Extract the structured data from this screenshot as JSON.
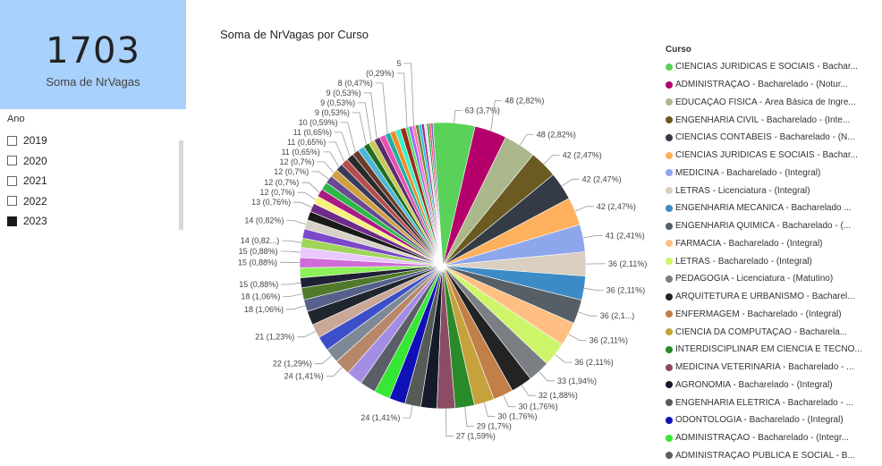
{
  "kpi": {
    "value": "1703",
    "label": "Soma de NrVagas"
  },
  "slicer": {
    "title": "Ano",
    "items": [
      {
        "label": "2019",
        "checked": false
      },
      {
        "label": "2020",
        "checked": false
      },
      {
        "label": "2021",
        "checked": false
      },
      {
        "label": "2022",
        "checked": false
      },
      {
        "label": "2023",
        "checked": true
      }
    ]
  },
  "legend": {
    "title": "Curso",
    "items": [
      {
        "label": "CIÊNCIAS JURÍDICAS E SOCIAIS - Bachar...",
        "color": "#5ad25a"
      },
      {
        "label": "ADMINISTRAÇÃO - Bacharelado - (Notur...",
        "color": "#b5006b"
      },
      {
        "label": "EDUCAÇÃO FÍSICA - Área Básica de Ingre...",
        "color": "#aab88c"
      },
      {
        "label": "ENGENHARIA CIVIL - Bacharelado - (Inte...",
        "color": "#6b5a22"
      },
      {
        "label": "CIÊNCIAS CONTÁBEIS - Bacharelado - (N...",
        "color": "#343b47"
      },
      {
        "label": "CIÊNCIAS JURÍDICAS E SOCIAIS - Bachar...",
        "color": "#ffb05c"
      },
      {
        "label": "MEDICINA - Bacharelado - (Integral)",
        "color": "#8ea7ec"
      },
      {
        "label": "LETRAS - Licenciatura - (Integral)",
        "color": "#dacfc0"
      },
      {
        "label": "ENGENHARIA MECÂNICA - Bacharelado ...",
        "color": "#3d8bc6"
      },
      {
        "label": "ENGENHARIA QUÍMICA - Bacharelado - (...",
        "color": "#575f66"
      },
      {
        "label": "FARMÁCIA - Bacharelado - (Integral)",
        "color": "#ffbe82"
      },
      {
        "label": "LETRAS - Bacharelado - (Integral)",
        "color": "#cdf56a"
      },
      {
        "label": "PEDAGOGIA - Licenciatura - (Matutino)",
        "color": "#7b7f84"
      },
      {
        "label": "ARQUITETURA E URBANISMO - Bacharel...",
        "color": "#232323"
      },
      {
        "label": "ENFERMAGEM - Bacharelado - (Integral)",
        "color": "#c27f48"
      },
      {
        "label": "CIÊNCIA DA COMPUTAÇÃO - Bacharela...",
        "color": "#c6a23c"
      },
      {
        "label": "INTERDISCIPLINAR EM CIÊNCIA E TECNO...",
        "color": "#2a8a2a"
      },
      {
        "label": "MEDICINA VETERINÁRIA - Bacharelado - ...",
        "color": "#8b4d63"
      },
      {
        "label": "AGRONOMIA - Bacharelado - (Integral)",
        "color": "#141a2a"
      },
      {
        "label": "ENGENHARIA ELÉTRICA - Bacharelado - ...",
        "color": "#555c57"
      },
      {
        "label": "ODONTOLOGIA - Bacharelado - (Integral)",
        "color": "#1010b8"
      },
      {
        "label": "ADMINISTRAÇÃO - Bacharelado - (Integr...",
        "color": "#35e834"
      },
      {
        "label": "ADMINISTRAÇÃO PÚBLICA E SOCIAL - B...",
        "color": "#5a5e66"
      }
    ]
  },
  "chart_data": {
    "type": "pie",
    "title": "Soma de NrVagas por Curso",
    "total": 1703,
    "slices": [
      {
        "value": 63,
        "label": "63 (3,7%)",
        "color": "#5ad25a"
      },
      {
        "value": 48,
        "label": "48 (2,82%)",
        "color": "#b5006b"
      },
      {
        "value": 48,
        "label": "48 (2,82%)",
        "color": "#aab88c"
      },
      {
        "value": 42,
        "label": "42 (2,47%)",
        "color": "#6b5a22"
      },
      {
        "value": 42,
        "label": "42 (2,47%)",
        "color": "#343b47"
      },
      {
        "value": 42,
        "label": "42 (2,47%)",
        "color": "#ffb05c"
      },
      {
        "value": 41,
        "label": "41 (2,41%)",
        "color": "#8ea7ec"
      },
      {
        "value": 36,
        "label": "36 (2,11%)",
        "color": "#dacfc0"
      },
      {
        "value": 36,
        "label": "36 (2,11%)",
        "color": "#3d8bc6"
      },
      {
        "value": 36,
        "label": "36 (2,1...)",
        "color": "#575f66"
      },
      {
        "value": 36,
        "label": "36 (2,11%)",
        "color": "#ffbe82"
      },
      {
        "value": 36,
        "label": "36 (2,11%)",
        "color": "#cdf56a"
      },
      {
        "value": 33,
        "label": "33 (1,94%)",
        "color": "#7b7f84"
      },
      {
        "value": 32,
        "label": "32 (1,88%)",
        "color": "#232323"
      },
      {
        "value": 30,
        "label": "30 (1,76%)",
        "color": "#c27f48"
      },
      {
        "value": 30,
        "label": "30 (1,76%)",
        "color": "#c6a23c"
      },
      {
        "value": 29,
        "label": "29 (1,7%)",
        "color": "#2a8a2a"
      },
      {
        "value": 27,
        "label": "27 (1,59%)",
        "color": "#8b4d63"
      },
      {
        "value": 24,
        "label": "",
        "color": "#141a2a"
      },
      {
        "value": 24,
        "label": "24 (1,41%)",
        "color": "#555c57"
      },
      {
        "value": 24,
        "label": "",
        "color": "#1010b8"
      },
      {
        "value": 24,
        "label": "",
        "color": "#35e834"
      },
      {
        "value": 24,
        "label": "",
        "color": "#5a5e66"
      },
      {
        "value": 24,
        "label": "",
        "color": "#a58ce4"
      },
      {
        "value": 24,
        "label": "24 (1,41%)",
        "color": "#b8876a"
      },
      {
        "value": 22,
        "label": "22 (1,29%)",
        "color": "#7d8a96"
      },
      {
        "value": 22,
        "label": "",
        "color": "#3c4fc9"
      },
      {
        "value": 21,
        "label": "21 (1,23%)",
        "color": "#c9a898"
      },
      {
        "value": 21,
        "label": "",
        "color": "#20262e"
      },
      {
        "value": 18,
        "label": "18 (1,06%)",
        "color": "#56608a"
      },
      {
        "value": 18,
        "label": "18 (1,06%)",
        "color": "#4f7a2a"
      },
      {
        "value": 15,
        "label": "15 (0,88%)",
        "color": "#1f1f35"
      },
      {
        "value": 15,
        "label": "",
        "color": "#8cf05a"
      },
      {
        "value": 15,
        "label": "15 (0,88%)",
        "color": "#cf6bd6"
      },
      {
        "value": 15,
        "label": "15 (0,88%)",
        "color": "#e8c8ff"
      },
      {
        "value": 14,
        "label": "14 (0,82...)",
        "color": "#9fd45a"
      },
      {
        "value": 14,
        "label": "",
        "color": "#7a4ac8"
      },
      {
        "value": 14,
        "label": "14 (0,82%)",
        "color": "#d7d2c8"
      },
      {
        "value": 13,
        "label": "",
        "color": "#1a1a1a"
      },
      {
        "value": 13,
        "label": "13 (0,76%)",
        "color": "#6e2c88"
      },
      {
        "value": 12,
        "label": "12 (0,7%)",
        "color": "#f7f07a"
      },
      {
        "value": 12,
        "label": "12 (0,7%)",
        "color": "#aa1a80"
      },
      {
        "value": 12,
        "label": "",
        "color": "#2db84a"
      },
      {
        "value": 12,
        "label": "12 (0,7%)",
        "color": "#6a4a90"
      },
      {
        "value": 12,
        "label": "12 (0,7%)",
        "color": "#d0a040"
      },
      {
        "value": 11,
        "label": "11 (0,65%)",
        "color": "#3a3a5a"
      },
      {
        "value": 11,
        "label": "11 (0,65%)",
        "color": "#b54d4d"
      },
      {
        "value": 11,
        "label": "11 (0,65%)",
        "color": "#2a2a2a"
      },
      {
        "value": 10,
        "label": "10 (0,59%)",
        "color": "#6b3a2a"
      },
      {
        "value": 10,
        "label": "",
        "color": "#4ab8d8"
      },
      {
        "value": 9,
        "label": "9 (0,53%)",
        "color": "#1e6e1e"
      },
      {
        "value": 9,
        "label": "9 (0,53%)",
        "color": "#c8c850"
      },
      {
        "value": 9,
        "label": "9 (0,53%)",
        "color": "#5a2a6e"
      },
      {
        "value": 9,
        "label": "",
        "color": "#e84fb0"
      },
      {
        "value": 8,
        "label": "8 (0,47%)",
        "color": "#20b0a0"
      },
      {
        "value": 8,
        "label": "",
        "color": "#f08a2a"
      },
      {
        "value": 8,
        "label": "",
        "color": "#3af0c8"
      },
      {
        "value": 8,
        "label": "",
        "color": "#9a2a1a"
      },
      {
        "value": 5,
        "label": "(0,29%)",
        "color": "#50e070"
      },
      {
        "value": 5,
        "label": "",
        "color": "#a060ff"
      },
      {
        "value": 5,
        "label": "5",
        "color": "#ff7ab0"
      },
      {
        "value": 5,
        "label": "",
        "color": "#6a8a3a"
      },
      {
        "value": 4,
        "label": "",
        "color": "#20c0f0"
      },
      {
        "value": 4,
        "label": "",
        "color": "#a02a8a"
      },
      {
        "value": 4,
        "label": "",
        "color": "#e0e0e0"
      },
      {
        "value": 3,
        "label": "",
        "color": "#10a040"
      },
      {
        "value": 3,
        "label": "",
        "color": "#ff4060"
      },
      {
        "value": 3,
        "label": "",
        "color": "#8060c0"
      }
    ]
  }
}
